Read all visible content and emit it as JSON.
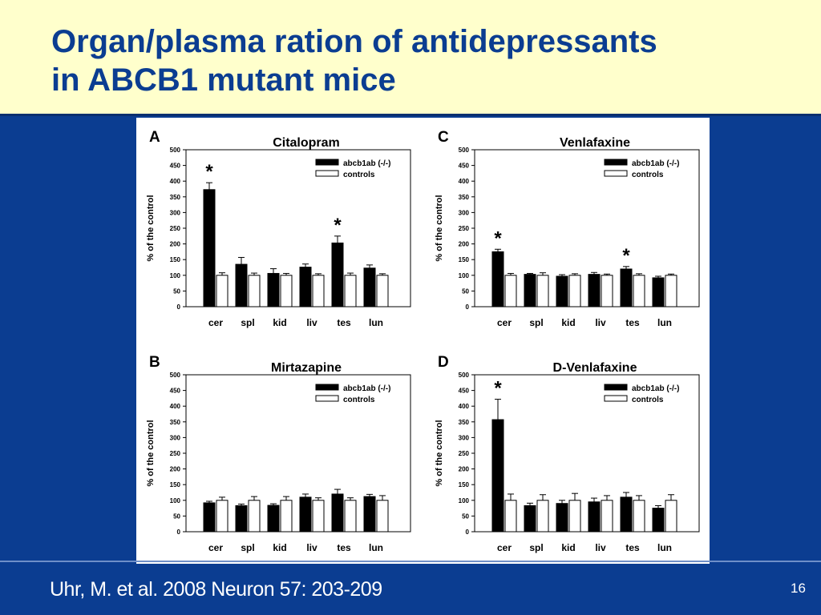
{
  "slide": {
    "title_line1": "Organ/plasma ration of antidepressants",
    "title_line2": "in ABCB1 mutant mice",
    "citation": "Uhr, M. et al. 2008 Neuron 57: 203-209",
    "page_number": "16"
  },
  "colors": {
    "header_bg": "#ffffcc",
    "slide_bg": "#0b3d91",
    "title": "#0b3d91",
    "bar_mutant": "#000000",
    "bar_control": "#ffffff"
  },
  "chart_data": [
    {
      "type": "bar",
      "panel_letter": "A",
      "title": "Citalopram",
      "ylabel": "% of the control",
      "ylim": [
        0,
        500
      ],
      "yticks": [
        0,
        50,
        100,
        150,
        200,
        250,
        300,
        350,
        400,
        450,
        500
      ],
      "categories": [
        "cer",
        "spl",
        "kid",
        "liv",
        "tes",
        "lun"
      ],
      "series": [
        {
          "name": "abcb1ab (-/-)",
          "values": [
            373,
            135,
            106,
            126,
            203,
            123
          ],
          "errors": [
            22,
            22,
            15,
            10,
            22,
            10
          ]
        },
        {
          "name": "controls",
          "values": [
            100,
            100,
            100,
            100,
            100,
            100
          ],
          "errors": [
            8,
            7,
            6,
            5,
            7,
            5
          ]
        }
      ],
      "significance": [
        "*",
        "",
        "",
        "",
        "*",
        ""
      ]
    },
    {
      "type": "bar",
      "panel_letter": "C",
      "title": "Venlafaxine",
      "ylabel": "% of the control",
      "ylim": [
        0,
        500
      ],
      "yticks": [
        0,
        50,
        100,
        150,
        200,
        250,
        300,
        350,
        400,
        450,
        500
      ],
      "categories": [
        "cer",
        "spl",
        "kid",
        "liv",
        "tes",
        "lun"
      ],
      "series": [
        {
          "name": "abcb1ab (-/-)",
          "values": [
            175,
            103,
            97,
            103,
            120,
            92
          ],
          "errors": [
            8,
            3,
            5,
            6,
            8,
            5
          ]
        },
        {
          "name": "controls",
          "values": [
            100,
            100,
            100,
            100,
            100,
            100
          ],
          "errors": [
            6,
            8,
            5,
            4,
            5,
            4
          ]
        }
      ],
      "significance": [
        "*",
        "",
        "",
        "",
        "*",
        ""
      ]
    },
    {
      "type": "bar",
      "panel_letter": "B",
      "title": "Mirtazapine",
      "ylabel": "% of the control",
      "ylim": [
        0,
        500
      ],
      "yticks": [
        0,
        50,
        100,
        150,
        200,
        250,
        300,
        350,
        400,
        450,
        500
      ],
      "categories": [
        "cer",
        "spl",
        "kid",
        "liv",
        "tes",
        "lun"
      ],
      "series": [
        {
          "name": "abcb1ab (-/-)",
          "values": [
            92,
            83,
            84,
            110,
            120,
            112
          ],
          "errors": [
            5,
            5,
            5,
            10,
            15,
            7
          ]
        },
        {
          "name": "controls",
          "values": [
            100,
            100,
            100,
            100,
            100,
            100
          ],
          "errors": [
            10,
            12,
            12,
            8,
            8,
            15
          ]
        }
      ],
      "significance": [
        "",
        "",
        "",
        "",
        "",
        ""
      ]
    },
    {
      "type": "bar",
      "panel_letter": "D",
      "title": "D-Venlafaxine",
      "ylabel": "% of the control",
      "ylim": [
        0,
        500
      ],
      "yticks": [
        0,
        50,
        100,
        150,
        200,
        250,
        300,
        350,
        400,
        450,
        500
      ],
      "categories": [
        "cer",
        "spl",
        "kid",
        "liv",
        "tes",
        "lun"
      ],
      "series": [
        {
          "name": "abcb1ab (-/-)",
          "values": [
            357,
            83,
            90,
            95,
            110,
            75
          ],
          "errors": [
            65,
            8,
            10,
            12,
            15,
            8
          ]
        },
        {
          "name": "controls",
          "values": [
            100,
            100,
            100,
            100,
            100,
            100
          ],
          "errors": [
            20,
            18,
            22,
            15,
            15,
            18
          ]
        }
      ],
      "significance": [
        "*",
        "",
        "",
        "",
        "",
        ""
      ]
    }
  ]
}
